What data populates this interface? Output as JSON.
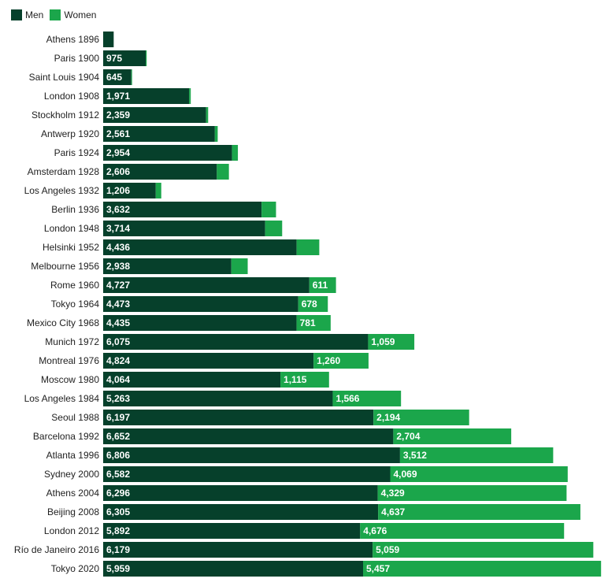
{
  "chart_data": {
    "type": "bar",
    "orientation": "horizontal",
    "stacked": true,
    "title": "",
    "xlabel": "",
    "ylabel": "",
    "legend_position": "top-left",
    "grid": false,
    "xlim": [
      0,
      11500
    ],
    "categories": [
      "Athens 1896",
      "Paris 1900",
      "Saint Louis 1904",
      "London 1908",
      "Stockholm 1912",
      "Antwerp 1920",
      "Paris 1924",
      "Amsterdam 1928",
      "Los Angeles 1932",
      "Berlin 1936",
      "London 1948",
      "Helsinki 1952",
      "Melbourne 1956",
      "Rome 1960",
      "Tokyo 1964",
      "Mexico City 1968",
      "Munich 1972",
      "Montreal 1976",
      "Moscow 1980",
      "Los Angeles 1984",
      "Seoul 1988",
      "Barcelona 1992",
      "Atlanta 1996",
      "Sydney 2000",
      "Athens 2004",
      "Beijing 2008",
      "London 2012",
      "Río de Janeiro 2016",
      "Tokyo 2020"
    ],
    "series": [
      {
        "name": "Men",
        "color": "#06402b",
        "values": [
          241,
          975,
          645,
          1971,
          2359,
          2561,
          2954,
          2606,
          1206,
          3632,
          3714,
          4436,
          2938,
          4727,
          4473,
          4435,
          6075,
          4824,
          4064,
          5263,
          6197,
          6652,
          6806,
          6582,
          6296,
          6305,
          5892,
          6179,
          5959
        ],
        "labels": [
          "",
          "975",
          "645",
          "1,971",
          "2,359",
          "2,561",
          "2,954",
          "2,606",
          "1,206",
          "3,632",
          "3,714",
          "4,436",
          "2,938",
          "4,727",
          "4,473",
          "4,435",
          "6,075",
          "4,824",
          "4,064",
          "5,263",
          "6,197",
          "6,652",
          "6,806",
          "6,582",
          "6,296",
          "6,305",
          "5,892",
          "6,179",
          "5,959"
        ]
      },
      {
        "name": "Women",
        "color": "#1ba64b",
        "values": [
          0,
          22,
          6,
          37,
          48,
          65,
          135,
          277,
          126,
          331,
          390,
          519,
          376,
          611,
          678,
          781,
          1059,
          1260,
          1115,
          1566,
          2194,
          2704,
          3512,
          4069,
          4329,
          4637,
          4676,
          5059,
          5457
        ],
        "labels": [
          "",
          "",
          "",
          "",
          "",
          "",
          "",
          "",
          "",
          "",
          "",
          "",
          "",
          "611",
          "678",
          "781",
          "1,059",
          "1,260",
          "1,115",
          "1,566",
          "2,194",
          "2,704",
          "3,512",
          "4,069",
          "4,329",
          "4,637",
          "4,676",
          "5,059",
          "5,457"
        ]
      }
    ]
  }
}
